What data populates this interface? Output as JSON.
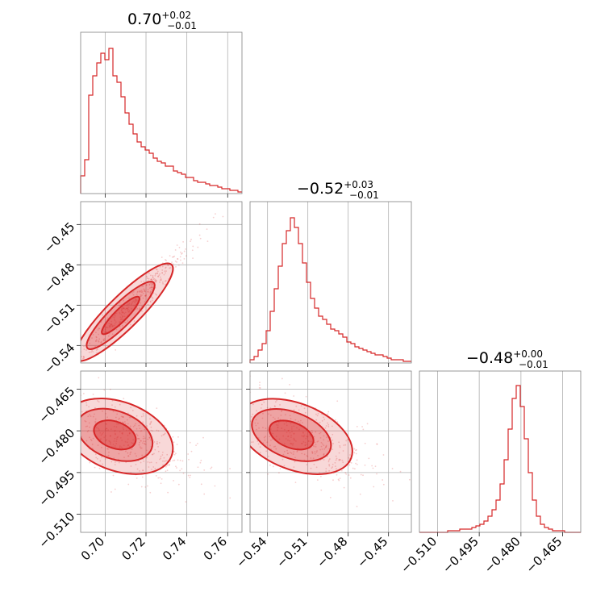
{
  "chart_data": {
    "type": "corner",
    "color": "#d62728",
    "parameters": [
      {
        "title": {
          "value": "0.70",
          "plus": "+0.02",
          "minus": "−0.01"
        },
        "range": [
          0.688,
          0.767
        ],
        "ticks": [
          {
            "v": 0.7,
            "label": "0.70"
          },
          {
            "v": 0.72,
            "label": "0.72"
          },
          {
            "v": 0.74,
            "label": "0.74"
          },
          {
            "v": 0.76,
            "label": "0.76"
          }
        ]
      },
      {
        "title": {
          "value": "−0.52",
          "plus": "+0.03",
          "minus": "−0.01"
        },
        "range": [
          -0.553,
          -0.433
        ],
        "ticks": [
          {
            "v": -0.54,
            "label": "−0.54"
          },
          {
            "v": -0.51,
            "label": "−0.51"
          },
          {
            "v": -0.48,
            "label": "−0.48"
          },
          {
            "v": -0.45,
            "label": "−0.45"
          }
        ]
      },
      {
        "title": {
          "value": "−0.48",
          "plus": "+0.00",
          "minus": "−0.01"
        },
        "range": [
          -0.5165,
          -0.4585
        ],
        "ticks": [
          {
            "v": -0.51,
            "label": "−0.510"
          },
          {
            "v": -0.495,
            "label": "−0.495"
          },
          {
            "v": -0.48,
            "label": "−0.480"
          },
          {
            "v": -0.465,
            "label": "−0.465"
          }
        ]
      }
    ],
    "histograms": [
      [
        0.11,
        0.21,
        0.61,
        0.73,
        0.81,
        0.87,
        0.83,
        0.9,
        0.73,
        0.69,
        0.6,
        0.5,
        0.43,
        0.37,
        0.32,
        0.29,
        0.27,
        0.25,
        0.22,
        0.2,
        0.19,
        0.17,
        0.17,
        0.14,
        0.13,
        0.12,
        0.1,
        0.1,
        0.08,
        0.07,
        0.07,
        0.06,
        0.05,
        0.05,
        0.04,
        0.03,
        0.03,
        0.02,
        0.02,
        0.01
      ],
      [
        0.02,
        0.04,
        0.08,
        0.12,
        0.2,
        0.32,
        0.46,
        0.6,
        0.74,
        0.82,
        0.9,
        0.84,
        0.74,
        0.62,
        0.5,
        0.4,
        0.34,
        0.29,
        0.27,
        0.24,
        0.21,
        0.2,
        0.18,
        0.16,
        0.13,
        0.12,
        0.1,
        0.09,
        0.08,
        0.07,
        0.06,
        0.05,
        0.05,
        0.04,
        0.03,
        0.02,
        0.02,
        0.02,
        0.01,
        0.01
      ],
      [
        0.0,
        0.0,
        0.0,
        0.0,
        0.0,
        0.0,
        0.0,
        0.01,
        0.01,
        0.01,
        0.02,
        0.02,
        0.02,
        0.03,
        0.04,
        0.05,
        0.07,
        0.1,
        0.14,
        0.2,
        0.3,
        0.45,
        0.64,
        0.83,
        0.91,
        0.78,
        0.58,
        0.37,
        0.2,
        0.1,
        0.05,
        0.03,
        0.02,
        0.01,
        0.01,
        0.01,
        0.0,
        0.0,
        0.0,
        0.0
      ]
    ]
  }
}
